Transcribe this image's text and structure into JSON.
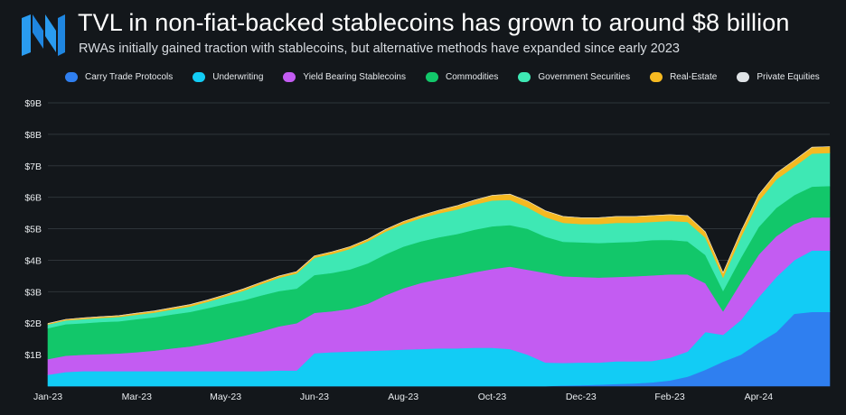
{
  "header": {
    "title": "TVL in non-fiat-backed stablecoins has grown to around $8 billion",
    "subtitle": "RWAs initially gained traction with stablecoins, but alternative methods have expanded since early 2023"
  },
  "chart_data": {
    "type": "area",
    "stacked": true,
    "title": "TVL in non-fiat-backed stablecoins has grown to around $8 billion",
    "subtitle": "RWAs initially gained traction with stablecoins, but alternative methods have expanded since early 2023",
    "xlabel": "",
    "ylabel": "",
    "ylim": [
      0,
      9
    ],
    "y_ticks": [
      {
        "value": 1,
        "label": "$1B"
      },
      {
        "value": 2,
        "label": "$2B"
      },
      {
        "value": 3,
        "label": "$3B"
      },
      {
        "value": 4,
        "label": "$4B"
      },
      {
        "value": 5,
        "label": "$5B"
      },
      {
        "value": 6,
        "label": "$6B"
      },
      {
        "value": 7,
        "label": "$7B"
      },
      {
        "value": 8,
        "label": "$8B"
      },
      {
        "value": 9,
        "label": "$9B"
      }
    ],
    "x_ticks": [
      {
        "index": 0,
        "label": "Jan-23"
      },
      {
        "index": 5,
        "label": "Mar-23"
      },
      {
        "index": 10,
        "label": "May-23"
      },
      {
        "index": 15,
        "label": "Jun-23"
      },
      {
        "index": 20,
        "label": "Aug-23"
      },
      {
        "index": 25,
        "label": "Oct-23"
      },
      {
        "index": 30,
        "label": "Dec-23"
      },
      {
        "index": 35,
        "label": "Feb-23"
      },
      {
        "index": 40,
        "label": "Apr-24"
      }
    ],
    "n_points": 45,
    "grid": true,
    "legend_position": "top",
    "series": [
      {
        "name": "Carry Trade Protocols",
        "color": "#2f7ff0",
        "values": [
          0,
          0,
          0,
          0,
          0,
          0,
          0,
          0,
          0,
          0,
          0,
          0,
          0,
          0,
          0,
          0,
          0,
          0,
          0,
          0,
          0,
          0,
          0,
          0,
          0,
          0,
          0,
          0,
          0,
          0.02,
          0.03,
          0.05,
          0.07,
          0.09,
          0.12,
          0.18,
          0.3,
          0.52,
          0.78,
          1.0,
          1.38,
          1.72,
          2.3,
          2.36,
          2.36
        ]
      },
      {
        "name": "Underwriting",
        "color": "#12ccf5",
        "values": [
          0.36,
          0.45,
          0.48,
          0.48,
          0.48,
          0.48,
          0.48,
          0.48,
          0.48,
          0.48,
          0.48,
          0.48,
          0.48,
          0.5,
          0.5,
          1.05,
          1.08,
          1.1,
          1.12,
          1.14,
          1.16,
          1.18,
          1.2,
          1.2,
          1.22,
          1.22,
          1.18,
          1.0,
          0.75,
          0.72,
          0.72,
          0.7,
          0.72,
          0.7,
          0.68,
          0.72,
          0.8,
          1.2,
          0.85,
          1.1,
          1.45,
          1.75,
          1.7,
          1.95,
          1.95
        ]
      },
      {
        "name": "Yield Bearing Stablecoins",
        "color": "#c35cf2",
        "values": [
          0.5,
          0.52,
          0.52,
          0.54,
          0.56,
          0.6,
          0.65,
          0.72,
          0.78,
          0.88,
          1.0,
          1.12,
          1.26,
          1.4,
          1.5,
          1.28,
          1.3,
          1.36,
          1.5,
          1.75,
          1.95,
          2.1,
          2.2,
          2.3,
          2.4,
          2.5,
          2.62,
          2.7,
          2.85,
          2.75,
          2.72,
          2.7,
          2.68,
          2.7,
          2.72,
          2.65,
          2.45,
          1.55,
          0.75,
          1.2,
          1.35,
          1.3,
          1.15,
          1.05,
          1.05
        ]
      },
      {
        "name": "Commodities",
        "color": "#12c76a",
        "values": [
          0.98,
          1.0,
          1.0,
          1.02,
          1.02,
          1.05,
          1.06,
          1.08,
          1.1,
          1.12,
          1.13,
          1.13,
          1.14,
          1.12,
          1.1,
          1.2,
          1.22,
          1.25,
          1.28,
          1.3,
          1.32,
          1.32,
          1.33,
          1.33,
          1.35,
          1.36,
          1.32,
          1.3,
          1.15,
          1.1,
          1.1,
          1.1,
          1.1,
          1.1,
          1.12,
          1.1,
          1.05,
          0.9,
          0.65,
          0.78,
          0.88,
          0.9,
          0.92,
          0.98,
          1.0
        ]
      },
      {
        "name": "Government Securities",
        "color": "#3ee8b4",
        "values": [
          0.12,
          0.12,
          0.13,
          0.13,
          0.14,
          0.14,
          0.15,
          0.16,
          0.17,
          0.2,
          0.24,
          0.3,
          0.36,
          0.42,
          0.48,
          0.55,
          0.6,
          0.65,
          0.7,
          0.72,
          0.72,
          0.74,
          0.76,
          0.78,
          0.8,
          0.82,
          0.8,
          0.68,
          0.62,
          0.6,
          0.58,
          0.6,
          0.62,
          0.6,
          0.58,
          0.6,
          0.62,
          0.55,
          0.42,
          0.65,
          0.82,
          0.9,
          0.9,
          1.05,
          1.05
        ]
      },
      {
        "name": "Real-Estate",
        "color": "#f5b921",
        "values": [
          0.03,
          0.03,
          0.04,
          0.04,
          0.04,
          0.05,
          0.05,
          0.05,
          0.06,
          0.06,
          0.06,
          0.06,
          0.06,
          0.06,
          0.06,
          0.06,
          0.07,
          0.07,
          0.07,
          0.07,
          0.08,
          0.08,
          0.1,
          0.12,
          0.14,
          0.16,
          0.18,
          0.2,
          0.2,
          0.2,
          0.2,
          0.2,
          0.2,
          0.2,
          0.2,
          0.2,
          0.2,
          0.18,
          0.15,
          0.18,
          0.2,
          0.2,
          0.2,
          0.2,
          0.2
        ]
      },
      {
        "name": "Private Equities",
        "color": "#dfe3e6",
        "values": [
          0,
          0,
          0,
          0,
          0,
          0,
          0,
          0,
          0,
          0,
          0,
          0,
          0,
          0,
          0,
          0,
          0,
          0,
          0,
          0,
          0,
          0,
          0,
          0,
          0,
          0,
          0,
          0,
          0,
          0,
          0,
          0,
          0,
          0,
          0,
          0,
          0,
          0,
          0,
          0,
          0,
          0,
          0,
          0,
          0
        ]
      }
    ]
  }
}
